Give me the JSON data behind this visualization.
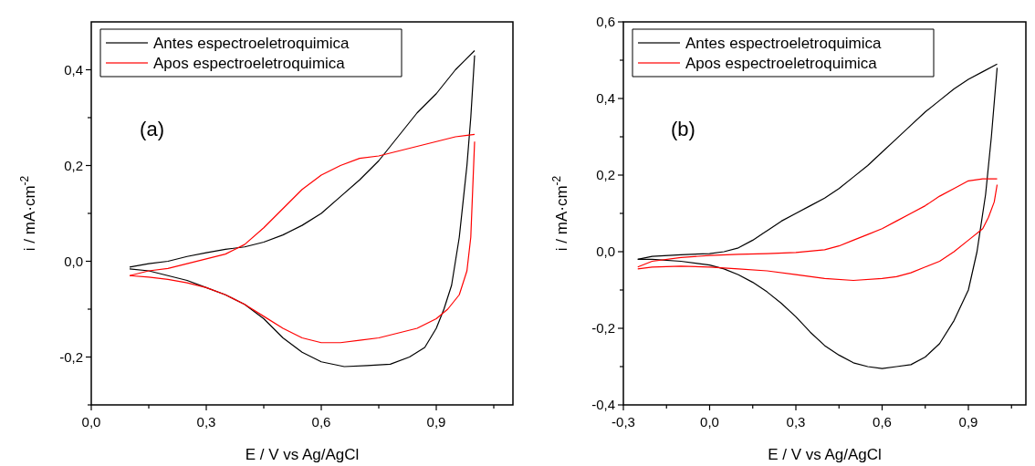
{
  "chart_data": [
    {
      "type": "line",
      "xlabel": "E / V vs Ag/AgCl",
      "ylabel": "i / mA·cm$^{-2}$",
      "annotations": [
        "(a)"
      ],
      "legend": "top left",
      "xlim": [
        0,
        1.1
      ],
      "ylim": [
        -0.3,
        0.5
      ],
      "xticks": [
        {
          "value": 0,
          "label": "0,0"
        },
        {
          "value": 0.15,
          "label": null
        },
        {
          "value": 0.3,
          "label": "0,3"
        },
        {
          "value": 0.45,
          "label": null
        },
        {
          "value": 0.6,
          "label": "0,6"
        },
        {
          "value": 0.75,
          "label": null
        },
        {
          "value": 0.9,
          "label": "0,9"
        },
        {
          "value": 1.05,
          "label": null
        }
      ],
      "yticks": [
        {
          "value": -0.3,
          "label": null
        },
        {
          "value": -0.2,
          "label": "-0,2"
        },
        {
          "value": -0.1,
          "label": null
        },
        {
          "value": 0,
          "label": "0,0"
        },
        {
          "value": 0.1,
          "label": null
        },
        {
          "value": 0.2,
          "label": "0,2"
        },
        {
          "value": 0.3,
          "label": null
        },
        {
          "value": 0.4,
          "label": "0,4"
        }
      ],
      "series": [
        {
          "name": "Antes espectroeletroquimica",
          "color": "#000000",
          "x": [
            0.1,
            0.15,
            0.2,
            0.25,
            0.3,
            0.35,
            0.4,
            0.45,
            0.5,
            0.55,
            0.6,
            0.65,
            0.7,
            0.75,
            0.8,
            0.85,
            0.9,
            0.95,
            1.0
          ],
          "values": [
            -0.012,
            -0.005,
            0.0,
            0.01,
            0.018,
            0.025,
            0.03,
            0.04,
            0.055,
            0.075,
            0.1,
            0.135,
            0.17,
            0.21,
            0.26,
            0.31,
            0.35,
            0.4,
            0.44
          ]
        },
        {
          "color": "#000000",
          "x": [
            0.1,
            0.15,
            0.2,
            0.25,
            0.3,
            0.35,
            0.4,
            0.45,
            0.5,
            0.55,
            0.6,
            0.66,
            0.72,
            0.78,
            0.83,
            0.87,
            0.9,
            0.92,
            0.94,
            0.96,
            0.98,
            0.99,
            1.0
          ],
          "values": [
            -0.016,
            -0.02,
            -0.03,
            -0.04,
            -0.055,
            -0.07,
            -0.09,
            -0.12,
            -0.16,
            -0.19,
            -0.21,
            -0.22,
            -0.218,
            -0.215,
            -0.2,
            -0.18,
            -0.14,
            -0.1,
            -0.05,
            0.05,
            0.2,
            0.3,
            0.43
          ]
        },
        {
          "name": "Apos espectroeletroquimica",
          "color": "#ff0000",
          "x": [
            0.1,
            0.15,
            0.2,
            0.25,
            0.3,
            0.35,
            0.4,
            0.45,
            0.5,
            0.55,
            0.6,
            0.65,
            0.7,
            0.75,
            0.8,
            0.85,
            0.9,
            0.95,
            1.0
          ],
          "values": [
            -0.03,
            -0.02,
            -0.015,
            -0.005,
            0.005,
            0.015,
            0.035,
            0.07,
            0.11,
            0.15,
            0.18,
            0.2,
            0.215,
            0.22,
            0.23,
            0.24,
            0.25,
            0.26,
            0.265
          ]
        },
        {
          "color": "#ff0000",
          "x": [
            0.1,
            0.15,
            0.2,
            0.25,
            0.3,
            0.35,
            0.4,
            0.45,
            0.5,
            0.55,
            0.6,
            0.65,
            0.7,
            0.75,
            0.8,
            0.85,
            0.9,
            0.93,
            0.96,
            0.98,
            0.99,
            0.995,
            1.0
          ],
          "values": [
            -0.03,
            -0.033,
            -0.038,
            -0.045,
            -0.055,
            -0.07,
            -0.09,
            -0.115,
            -0.14,
            -0.16,
            -0.17,
            -0.17,
            -0.165,
            -0.16,
            -0.15,
            -0.14,
            -0.12,
            -0.1,
            -0.07,
            -0.02,
            0.05,
            0.15,
            0.25
          ]
        }
      ]
    },
    {
      "type": "line",
      "xlabel": "E / V vs Ag/AgCl",
      "ylabel": "i / mA·cm$^{-2}$",
      "annotations": [
        "(b)"
      ],
      "legend": "top left",
      "xlim": [
        -0.3,
        1.1
      ],
      "ylim": [
        -0.4,
        0.6
      ],
      "xticks": [
        {
          "value": -0.3,
          "label": "-0,3"
        },
        {
          "value": -0.15,
          "label": null
        },
        {
          "value": 0,
          "label": "0,0"
        },
        {
          "value": 0.15,
          "label": null
        },
        {
          "value": 0.3,
          "label": "0,3"
        },
        {
          "value": 0.45,
          "label": null
        },
        {
          "value": 0.6,
          "label": "0,6"
        },
        {
          "value": 0.75,
          "label": null
        },
        {
          "value": 0.9,
          "label": "0,9"
        },
        {
          "value": 1.05,
          "label": null
        }
      ],
      "yticks": [
        {
          "value": -0.4,
          "label": "-0,4"
        },
        {
          "value": -0.3,
          "label": null
        },
        {
          "value": -0.2,
          "label": "-0,2"
        },
        {
          "value": -0.1,
          "label": null
        },
        {
          "value": 0,
          "label": "0,0"
        },
        {
          "value": 0.1,
          "label": null
        },
        {
          "value": 0.2,
          "label": "0,2"
        },
        {
          "value": 0.3,
          "label": null
        },
        {
          "value": 0.4,
          "label": "0,4"
        },
        {
          "value": 0.5,
          "label": null
        },
        {
          "value": 0.6,
          "label": "0,6"
        }
      ],
      "series": [
        {
          "name": "Antes espectroeletroquimica",
          "color": "#000000",
          "x": [
            -0.25,
            -0.2,
            -0.1,
            0,
            0.05,
            0.1,
            0.15,
            0.2,
            0.25,
            0.3,
            0.35,
            0.4,
            0.45,
            0.5,
            0.55,
            0.6,
            0.65,
            0.7,
            0.75,
            0.8,
            0.85,
            0.9,
            0.95,
            1.0
          ],
          "values": [
            -0.02,
            -0.012,
            -0.008,
            -0.005,
            0.0,
            0.01,
            0.03,
            0.055,
            0.08,
            0.1,
            0.12,
            0.14,
            0.165,
            0.195,
            0.225,
            0.26,
            0.295,
            0.33,
            0.365,
            0.395,
            0.425,
            0.45,
            0.47,
            0.49
          ]
        },
        {
          "color": "#000000",
          "x": [
            -0.25,
            -0.2,
            -0.1,
            0,
            0.05,
            0.1,
            0.15,
            0.2,
            0.25,
            0.3,
            0.35,
            0.4,
            0.45,
            0.5,
            0.55,
            0.6,
            0.65,
            0.7,
            0.75,
            0.8,
            0.85,
            0.9,
            0.93,
            0.96,
            0.98,
            1.0
          ],
          "values": [
            -0.02,
            -0.02,
            -0.025,
            -0.035,
            -0.045,
            -0.06,
            -0.08,
            -0.105,
            -0.135,
            -0.17,
            -0.21,
            -0.245,
            -0.27,
            -0.29,
            -0.3,
            -0.305,
            -0.3,
            -0.295,
            -0.275,
            -0.24,
            -0.18,
            -0.1,
            0.0,
            0.15,
            0.3,
            0.48
          ]
        },
        {
          "name": "Apos espectroeletroquimica",
          "color": "#ff0000",
          "x": [
            -0.25,
            -0.2,
            -0.1,
            0,
            0.1,
            0.2,
            0.3,
            0.4,
            0.45,
            0.5,
            0.55,
            0.6,
            0.65,
            0.7,
            0.75,
            0.8,
            0.85,
            0.9,
            0.95,
            1.0
          ],
          "values": [
            -0.04,
            -0.025,
            -0.015,
            -0.01,
            -0.007,
            -0.005,
            -0.002,
            0.005,
            0.015,
            0.03,
            0.045,
            0.06,
            0.08,
            0.1,
            0.12,
            0.145,
            0.165,
            0.185,
            0.19,
            0.19
          ]
        },
        {
          "color": "#ff0000",
          "x": [
            -0.25,
            -0.2,
            -0.1,
            0,
            0.1,
            0.2,
            0.3,
            0.4,
            0.5,
            0.6,
            0.65,
            0.7,
            0.75,
            0.8,
            0.85,
            0.9,
            0.95,
            0.97,
            0.99,
            1.0
          ],
          "values": [
            -0.045,
            -0.04,
            -0.038,
            -0.04,
            -0.045,
            -0.05,
            -0.06,
            -0.07,
            -0.075,
            -0.07,
            -0.065,
            -0.055,
            -0.04,
            -0.025,
            0.0,
            0.03,
            0.06,
            0.09,
            0.13,
            0.175
          ]
        }
      ]
    }
  ]
}
